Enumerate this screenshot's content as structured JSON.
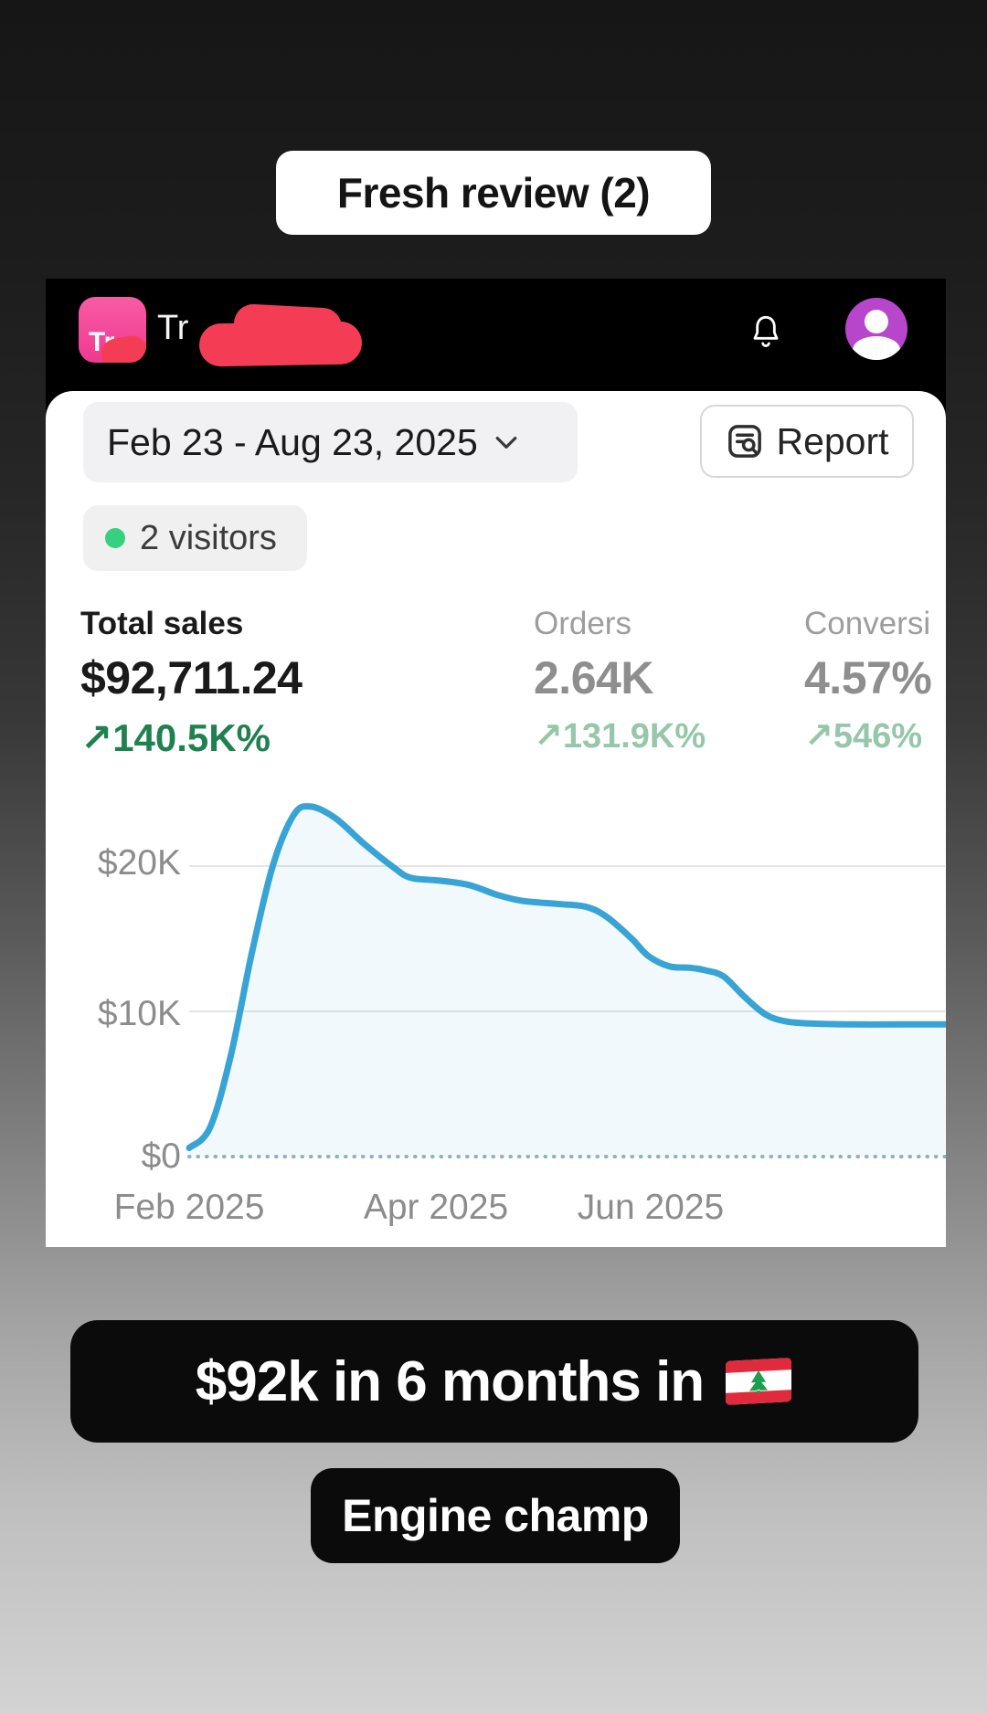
{
  "story": {
    "top_label": "Fresh review (2)",
    "caption_main": "$92k in 6 months in",
    "caption_flag": "lebanon-flag",
    "caption_sub": "Engine champ"
  },
  "app": {
    "icon_text": "Tr",
    "store_name_visible": "Tr",
    "date_range": "Feb 23 - Aug 23, 2025",
    "report_label": "Report",
    "visitors_label": "2 visitors",
    "metrics": [
      {
        "label": "Total sales",
        "value": "$92,711.24",
        "delta": "↗140.5K%",
        "state": "active"
      },
      {
        "label": "Orders",
        "value": "2.64K",
        "delta": "↗131.9K%",
        "state": "muted"
      },
      {
        "label": "Conversi",
        "value": "4.57%",
        "delta": "↗546%",
        "state": "muted"
      }
    ]
  },
  "chart_data": {
    "type": "area",
    "series_name": "Total sales",
    "date_start": "Feb 23, 2025",
    "date_end": "Aug 23, 2025",
    "x_days_from_start": [
      0,
      5,
      10,
      15,
      20,
      25,
      29,
      35,
      42,
      49,
      53,
      60,
      67,
      74,
      80,
      88,
      95,
      100,
      106,
      110,
      115,
      120,
      124,
      128,
      133,
      138,
      143,
      150,
      160,
      170,
      181
    ],
    "values_usd": [
      600,
      2000,
      7000,
      14000,
      20000,
      23500,
      24100,
      23300,
      21500,
      19900,
      19200,
      19000,
      18700,
      18000,
      17600,
      17400,
      17200,
      16500,
      15000,
      13800,
      13100,
      13000,
      12800,
      12400,
      11000,
      9800,
      9300,
      9150,
      9100,
      9100,
      9100
    ],
    "ylim_usd": [
      0,
      25300
    ],
    "grid_values_usd": [
      20000,
      10000
    ],
    "yticks": [
      "$20K",
      "$10K",
      "$0"
    ],
    "xticks": [
      "Feb 2025",
      "Apr 2025",
      "Jun 2025"
    ],
    "line_color": "#38a3d5",
    "fill_color": "rgba(56,163,213,0.07)",
    "baseline_style": "dotted",
    "legend": "none"
  },
  "colors": {
    "accent_green_dark": "#1f8050",
    "accent_green_muted": "#96c7ab",
    "chart_blue": "#38a3d5",
    "avatar_purple": "#b746cc",
    "app_icon_pink": "#ee3a90",
    "redaction_red": "#f43d55",
    "visitor_dot_green": "#36d07e"
  }
}
